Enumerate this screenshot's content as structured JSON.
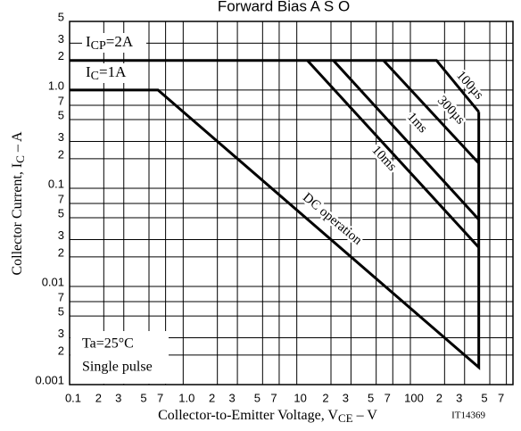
{
  "chart_data": {
    "type": "line",
    "title": "Forward Bias A S O",
    "x_label": {
      "main": "Collector-to-Emitter Voltage, V",
      "sub": "CE",
      "rest": " – V"
    },
    "y_label": {
      "main": "Collector Current, I",
      "sub": "C",
      "rest": " – A"
    },
    "annotations": [
      {
        "main": "I",
        "sub": "CP",
        "rest": "=2A"
      },
      {
        "main": "I",
        "sub": "C",
        "rest": "=1A"
      }
    ],
    "conditions": [
      "Ta=25°C",
      "Single pulse"
    ],
    "code": "IT14369",
    "xscale": "log",
    "yscale": "log",
    "grid": true,
    "color": "#000000",
    "xlim": [
      0.1,
      800
    ],
    "ylim": [
      0.001,
      5
    ],
    "xticks": [
      0.1,
      {
        "value": 0.2,
        "label": "2"
      },
      {
        "value": 0.3,
        "label": "3"
      },
      {
        "value": 0.5,
        "label": "5"
      },
      {
        "value": 0.7,
        "label": "7"
      },
      {
        "value": 1,
        "label": "1.0"
      },
      2,
      3,
      5,
      7,
      10,
      {
        "value": 20,
        "label": "2"
      },
      {
        "value": 30,
        "label": "3"
      },
      {
        "value": 50,
        "label": "5"
      },
      {
        "value": 70,
        "label": "7"
      },
      100,
      {
        "value": 200,
        "label": "2"
      },
      {
        "value": 300,
        "label": "3"
      },
      {
        "value": 500,
        "label": "5"
      },
      {
        "value": 700,
        "label": "7"
      }
    ],
    "yticks": [
      0.001,
      {
        "value": 0.002,
        "label": "2"
      },
      {
        "value": 0.003,
        "label": "3"
      },
      {
        "value": 0.005,
        "label": "5"
      },
      {
        "value": 0.007,
        "label": "7"
      },
      0.01,
      {
        "value": 0.02,
        "label": "2"
      },
      {
        "value": 0.03,
        "label": "3"
      },
      {
        "value": 0.05,
        "label": "5"
      },
      {
        "value": 0.07,
        "label": "7"
      },
      0.1,
      {
        "value": 0.2,
        "label": "2"
      },
      {
        "value": 0.3,
        "label": "3"
      },
      {
        "value": 0.5,
        "label": "5"
      },
      {
        "value": 0.7,
        "label": "7"
      },
      {
        "value": 1,
        "label": "1.0"
      },
      2,
      3,
      5
    ],
    "series": [
      {
        "name": "100µs",
        "x": [
          0.1,
          170,
          400
        ],
        "values": [
          2,
          2,
          0.6
        ]
      },
      {
        "name": "300µs",
        "x": [
          58,
          400
        ],
        "values": [
          2,
          0.18
        ]
      },
      {
        "name": "1ms",
        "x": [
          21,
          400
        ],
        "values": [
          2,
          0.048
        ]
      },
      {
        "name": "10ms",
        "x": [
          12.4,
          400
        ],
        "values": [
          2,
          0.025
        ]
      },
      {
        "name": "DC operation",
        "x": [
          0.1,
          0.6,
          400,
          400
        ],
        "values": [
          1,
          1,
          0.0015,
          0.6
        ]
      }
    ]
  }
}
